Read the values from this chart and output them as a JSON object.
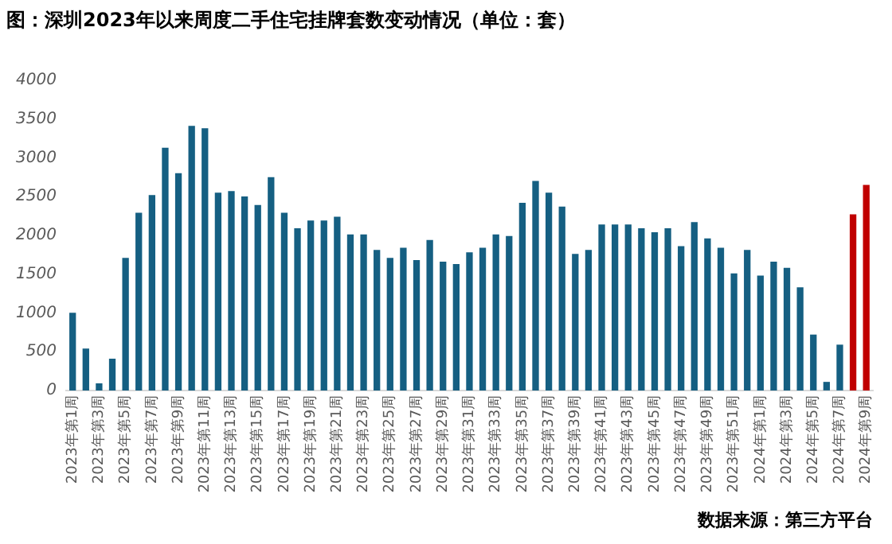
{
  "chart_data": {
    "type": "bar",
    "title": "图：深圳2023年以来周度二手住宅挂牌套数变动情况（单位：套）",
    "annotations": [
      "数据来源：第三方平台"
    ],
    "categories": [
      "2023年第1周",
      null,
      "2023年第3周",
      null,
      "2023年第5周",
      null,
      "2023年第7周",
      null,
      "2023年第9周",
      null,
      "2023年第11周",
      null,
      "2023年第13周",
      null,
      "2023年第15周",
      null,
      "2023年第17周",
      null,
      "2023年第19周",
      null,
      "2023年第21周",
      null,
      "2023年第23周",
      null,
      "2023年第25周",
      null,
      "2023年第27周",
      null,
      "2023年第29周",
      null,
      "2023年第31周",
      null,
      "2023年第33周",
      null,
      "2023年第35周",
      null,
      "2023年第37周",
      null,
      "2023年第39周",
      null,
      "2023年第41周",
      null,
      "2023年第43周",
      null,
      "2023年第45周",
      null,
      "2023年第47周",
      null,
      "2023年第49周",
      null,
      "2023年第51周",
      null,
      "2024年第1周",
      null,
      "2024年第3周",
      null,
      "2024年第5周",
      null,
      "2024年第7周",
      null,
      "2024年第9周"
    ],
    "values": [
      1000,
      540,
      90,
      410,
      1710,
      2290,
      2520,
      3130,
      2800,
      3410,
      3380,
      2550,
      2570,
      2500,
      2390,
      2750,
      2290,
      2090,
      2190,
      2190,
      2240,
      2010,
      2010,
      1810,
      1710,
      1840,
      1680,
      1940,
      1660,
      1630,
      1780,
      1840,
      2010,
      1990,
      2420,
      2700,
      2550,
      2370,
      1760,
      1810,
      2140,
      2140,
      2140,
      2090,
      2040,
      2090,
      1860,
      2170,
      1960,
      1840,
      1510,
      1810,
      1480,
      1660,
      1580,
      1330,
      720,
      110,
      590,
      2270,
      2650
    ],
    "colors": [
      "#155f82",
      "#155f82",
      "#155f82",
      "#155f82",
      "#155f82",
      "#155f82",
      "#155f82",
      "#155f82",
      "#155f82",
      "#155f82",
      "#155f82",
      "#155f82",
      "#155f82",
      "#155f82",
      "#155f82",
      "#155f82",
      "#155f82",
      "#155f82",
      "#155f82",
      "#155f82",
      "#155f82",
      "#155f82",
      "#155f82",
      "#155f82",
      "#155f82",
      "#155f82",
      "#155f82",
      "#155f82",
      "#155f82",
      "#155f82",
      "#155f82",
      "#155f82",
      "#155f82",
      "#155f82",
      "#155f82",
      "#155f82",
      "#155f82",
      "#155f82",
      "#155f82",
      "#155f82",
      "#155f82",
      "#155f82",
      "#155f82",
      "#155f82",
      "#155f82",
      "#155f82",
      "#155f82",
      "#155f82",
      "#155f82",
      "#155f82",
      "#155f82",
      "#155f82",
      "#155f82",
      "#155f82",
      "#155f82",
      "#155f82",
      "#155f82",
      "#155f82",
      "#155f82",
      "#c00000",
      "#c00000"
    ],
    "ylim": [
      0,
      4000
    ],
    "yticks": [
      0,
      500,
      1000,
      1500,
      2000,
      2500,
      3000,
      3500,
      4000
    ],
    "grid": false,
    "legend": false
  }
}
